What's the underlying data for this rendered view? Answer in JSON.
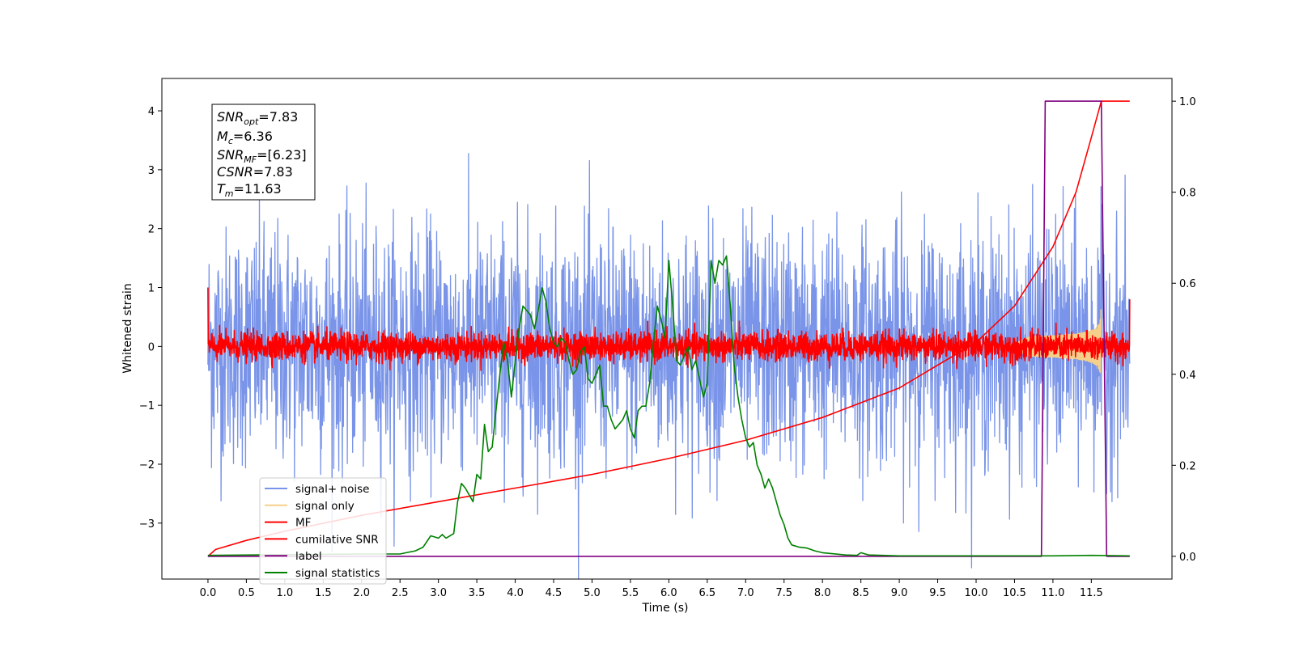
{
  "chart_data": {
    "type": "line",
    "xlabel": "Time (s)",
    "ylabel_left": "Whitened strain",
    "xlim": [
      -0.6,
      12.55
    ],
    "ylim_left": [
      -3.95,
      4.55
    ],
    "ylim_right": [
      -0.05,
      1.05
    ],
    "x_ticks": [
      "0.0",
      "0.5",
      "1.0",
      "1.5",
      "2.0",
      "2.5",
      "3.0",
      "3.5",
      "4.0",
      "4.5",
      "5.0",
      "5.5",
      "6.0",
      "6.5",
      "7.0",
      "7.5",
      "8.0",
      "8.5",
      "9.0",
      "9.5",
      "10.0",
      "10.5",
      "11.0",
      "11.5"
    ],
    "y_ticks_left": [
      "4",
      "3",
      "2",
      "1",
      "0",
      "−1",
      "−2",
      "−3"
    ],
    "y_ticks_right": [
      "1.0",
      "0.8",
      "0.6",
      "0.4",
      "0.2",
      "0.0"
    ],
    "info_box": {
      "snr_opt_label": "SNR",
      "snr_opt_sub": "opt",
      "snr_opt_value": "=7.83",
      "mc_label": "M",
      "mc_sub": "c",
      "mc_value": "=6.36",
      "snr_mf_label": "SNR",
      "snr_mf_sub": "MF",
      "snr_mf_value": "=[6.23]",
      "csnr_label": "CSNR",
      "csnr_value": "=7.83",
      "tm_label": "T",
      "tm_sub": "m",
      "tm_value": "=11.63"
    },
    "legend": {
      "placement": "lower-left",
      "entries": [
        {
          "label": "signal+ noise",
          "color": "#7994e8"
        },
        {
          "label": "signal only",
          "color": "#f5d08a"
        },
        {
          "label": "MF",
          "color": "#ff0000"
        },
        {
          "label": "cumilative SNR",
          "color": "#ff0000"
        },
        {
          "label": "label",
          "color": "#800080"
        },
        {
          "label": "signal statistics",
          "color": "#008000"
        }
      ]
    },
    "series": [
      {
        "name": "signal+ noise",
        "axis": "left",
        "kind": "noise",
        "x_range": [
          0.0,
          12.0
        ],
        "std": 1.0,
        "color": "#7994e8"
      },
      {
        "name": "signal only",
        "axis": "left",
        "kind": "chirp",
        "x_range": [
          10.4,
          11.63
        ],
        "peak": 0.65,
        "color": "#f5d08a"
      },
      {
        "name": "MF",
        "axis": "left",
        "kind": "noise",
        "x_range": [
          0.0,
          12.0
        ],
        "std": 0.12,
        "start_value": 1.0,
        "end_value": 0.8,
        "color": "#ff0000"
      },
      {
        "name": "cumilative SNR",
        "axis": "right",
        "x": [
          0.0,
          0.1,
          0.5,
          1,
          2,
          3,
          4,
          5,
          6,
          7,
          8,
          9,
          9.5,
          10,
          10.5,
          11,
          11.3,
          11.5,
          11.63,
          12.0
        ],
        "y": [
          0.0,
          0.015,
          0.035,
          0.055,
          0.09,
          0.12,
          0.15,
          0.18,
          0.215,
          0.255,
          0.305,
          0.37,
          0.42,
          0.47,
          0.55,
          0.68,
          0.8,
          0.92,
          1.0,
          1.0
        ],
        "color": "#ff0000"
      },
      {
        "name": "label",
        "axis": "right",
        "x": [
          0.0,
          10.85,
          10.9,
          11.63,
          11.7,
          12.0
        ],
        "y": [
          0.0,
          0.0,
          1.0,
          1.0,
          0.0,
          0.0
        ],
        "color": "#800080"
      },
      {
        "name": "signal statistics",
        "axis": "right",
        "x": [
          0.0,
          2.0,
          2.5,
          2.7,
          2.8,
          2.9,
          3.0,
          3.05,
          3.1,
          3.2,
          3.25,
          3.3,
          3.35,
          3.45,
          3.5,
          3.55,
          3.6,
          3.65,
          3.7,
          3.75,
          3.8,
          3.85,
          3.9,
          3.95,
          4.0,
          4.05,
          4.1,
          4.15,
          4.2,
          4.25,
          4.3,
          4.35,
          4.4,
          4.45,
          4.5,
          4.55,
          4.6,
          4.65,
          4.7,
          4.75,
          4.8,
          4.85,
          4.9,
          4.95,
          5.0,
          5.05,
          5.1,
          5.15,
          5.2,
          5.25,
          5.3,
          5.35,
          5.4,
          5.45,
          5.5,
          5.55,
          5.6,
          5.65,
          5.7,
          5.75,
          5.8,
          5.85,
          5.9,
          5.95,
          6.0,
          6.05,
          6.1,
          6.15,
          6.2,
          6.25,
          6.3,
          6.35,
          6.4,
          6.45,
          6.5,
          6.55,
          6.6,
          6.65,
          6.7,
          6.75,
          6.8,
          6.85,
          6.9,
          6.95,
          7.0,
          7.05,
          7.1,
          7.15,
          7.2,
          7.25,
          7.3,
          7.35,
          7.4,
          7.45,
          7.5,
          7.55,
          7.6,
          7.7,
          7.8,
          7.9,
          8.0,
          8.3,
          8.45,
          8.5,
          8.6,
          9.0,
          10.0,
          11.0,
          11.5,
          12.0
        ],
        "y": [
          0.002,
          0.005,
          0.005,
          0.012,
          0.02,
          0.045,
          0.04,
          0.048,
          0.04,
          0.05,
          0.12,
          0.16,
          0.15,
          0.12,
          0.18,
          0.17,
          0.29,
          0.23,
          0.24,
          0.32,
          0.4,
          0.47,
          0.43,
          0.35,
          0.43,
          0.5,
          0.55,
          0.54,
          0.53,
          0.5,
          0.54,
          0.59,
          0.56,
          0.5,
          0.47,
          0.46,
          0.48,
          0.47,
          0.43,
          0.4,
          0.41,
          0.45,
          0.46,
          0.39,
          0.38,
          0.4,
          0.42,
          0.33,
          0.33,
          0.3,
          0.28,
          0.29,
          0.3,
          0.32,
          0.28,
          0.26,
          0.32,
          0.33,
          0.33,
          0.38,
          0.47,
          0.55,
          0.52,
          0.48,
          0.65,
          0.55,
          0.43,
          0.42,
          0.44,
          0.46,
          0.41,
          0.43,
          0.39,
          0.35,
          0.38,
          0.65,
          0.6,
          0.65,
          0.64,
          0.66,
          0.55,
          0.42,
          0.35,
          0.3,
          0.26,
          0.24,
          0.25,
          0.2,
          0.18,
          0.15,
          0.17,
          0.15,
          0.12,
          0.09,
          0.07,
          0.04,
          0.025,
          0.02,
          0.018,
          0.012,
          0.008,
          0.003,
          0.002,
          0.008,
          0.003,
          0.001,
          0.001,
          0.001,
          0.002,
          0.001
        ],
        "color": "#008000"
      }
    ]
  }
}
